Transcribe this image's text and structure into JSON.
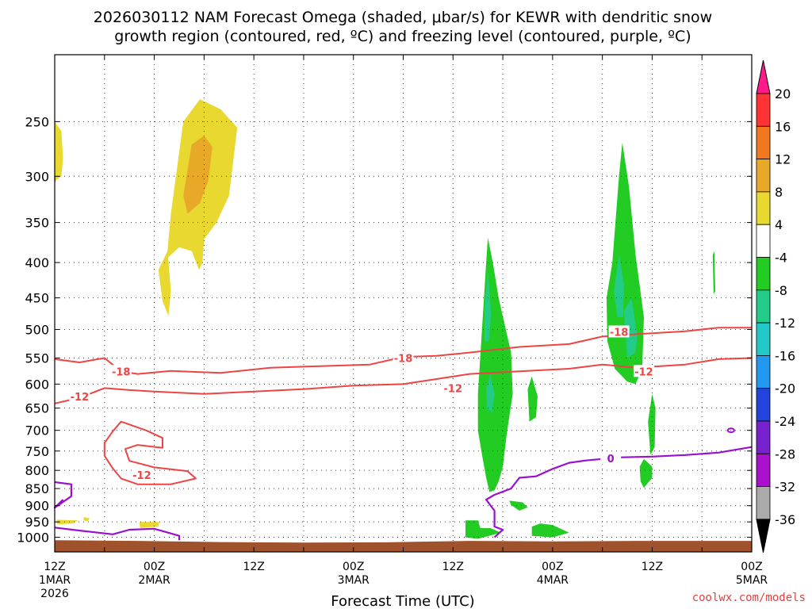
{
  "chart_data": {
    "type": "heatmap",
    "title_line1": "2026030112 NAM Forecast Omega (shaded, μbar/s) for KEWR with dendritic snow",
    "title_line2": "growth region (contoured, red, ºC) and freezing level (contoured, purple, ºC)",
    "xlabel": "Forecast Time (UTC)",
    "y_ticks": [
      250,
      300,
      350,
      400,
      450,
      500,
      550,
      600,
      650,
      700,
      750,
      800,
      850,
      900,
      950,
      1000
    ],
    "ylim": [
      1050,
      200
    ],
    "x_ticks": [
      {
        "hour": 0,
        "l1": "12Z",
        "l2": "1MAR",
        "l3": "2026"
      },
      {
        "hour": 6,
        "l1": "",
        "l2": "",
        "l3": ""
      },
      {
        "hour": 12,
        "l1": "00Z",
        "l2": "2MAR",
        "l3": ""
      },
      {
        "hour": 18,
        "l1": "",
        "l2": "",
        "l3": ""
      },
      {
        "hour": 24,
        "l1": "12Z",
        "l2": "",
        "l3": ""
      },
      {
        "hour": 30,
        "l1": "",
        "l2": "",
        "l3": ""
      },
      {
        "hour": 36,
        "l1": "00Z",
        "l2": "3MAR",
        "l3": ""
      },
      {
        "hour": 42,
        "l1": "",
        "l2": "",
        "l3": ""
      },
      {
        "hour": 48,
        "l1": "12Z",
        "l2": "",
        "l3": ""
      },
      {
        "hour": 54,
        "l1": "",
        "l2": "",
        "l3": ""
      },
      {
        "hour": 60,
        "l1": "00Z",
        "l2": "4MAR",
        "l3": ""
      },
      {
        "hour": 66,
        "l1": "",
        "l2": "",
        "l3": ""
      },
      {
        "hour": 72,
        "l1": "12Z",
        "l2": "",
        "l3": ""
      },
      {
        "hour": 78,
        "l1": "",
        "l2": "",
        "l3": ""
      },
      {
        "hour": 84,
        "l1": "00Z",
        "l2": "5MAR",
        "l3": ""
      }
    ],
    "xlim": [
      0,
      84
    ],
    "colorbar": {
      "labels": [
        20,
        16,
        12,
        8,
        4,
        -4,
        -8,
        -12,
        -16,
        -20,
        -24,
        -28,
        -32,
        -36
      ],
      "colors": [
        "#ff1a8c",
        "#ff3333",
        "#f07820",
        "#e8a828",
        "#e8d830",
        "#ffffff",
        "#22cc22",
        "#22cc88",
        "#22c8c8",
        "#2299ee",
        "#2244dd",
        "#7722cc",
        "#aa11cc",
        "#aaaaaa",
        "#000000"
      ]
    },
    "colors": {
      "dgz": "#ee4444",
      "freezing": "#9911cc",
      "ground": "#a0522d"
    },
    "contour_labels": [
      {
        "text": "-18",
        "hour": 8,
        "p": 575
      },
      {
        "text": "-18",
        "hour": 42,
        "p": 550
      },
      {
        "text": "-18",
        "hour": 68,
        "p": 504
      },
      {
        "text": "-12",
        "hour": 3,
        "p": 625
      },
      {
        "text": "-12",
        "hour": 48,
        "p": 608
      },
      {
        "text": "-12",
        "hour": 71,
        "p": 575
      },
      {
        "text": "-12",
        "hour": 10.5,
        "p": 812
      },
      {
        "text": "0",
        "hour": 67,
        "p": 769
      }
    ],
    "dgz_upper": [
      [
        0,
        552
      ],
      [
        3,
        558
      ],
      [
        6,
        550
      ],
      [
        8,
        575
      ],
      [
        10,
        580
      ],
      [
        14,
        574
      ],
      [
        20,
        578
      ],
      [
        26,
        568
      ],
      [
        32,
        565
      ],
      [
        38,
        562
      ],
      [
        42,
        548
      ],
      [
        46,
        546
      ],
      [
        50,
        540
      ],
      [
        56,
        530
      ],
      [
        62,
        525
      ],
      [
        66,
        512
      ],
      [
        70,
        508
      ],
      [
        76,
        503
      ],
      [
        80,
        497
      ],
      [
        84,
        497
      ]
    ],
    "dgz_lower": [
      [
        0,
        640
      ],
      [
        3,
        628
      ],
      [
        6,
        608
      ],
      [
        9,
        612
      ],
      [
        12,
        615
      ],
      [
        18,
        620
      ],
      [
        24,
        615
      ],
      [
        30,
        610
      ],
      [
        36,
        603
      ],
      [
        42,
        600
      ],
      [
        46,
        590
      ],
      [
        50,
        580
      ],
      [
        56,
        575
      ],
      [
        62,
        570
      ],
      [
        66,
        562
      ],
      [
        70,
        568
      ],
      [
        76,
        562
      ],
      [
        80,
        552
      ],
      [
        84,
        550
      ]
    ],
    "dgz_loop": [
      [
        8,
        680
      ],
      [
        11,
        700
      ],
      [
        13,
        718
      ],
      [
        13,
        742
      ],
      [
        10,
        735
      ],
      [
        8.5,
        745
      ],
      [
        9,
        775
      ],
      [
        12,
        792
      ],
      [
        16,
        802
      ],
      [
        17,
        822
      ],
      [
        14,
        838
      ],
      [
        10,
        838
      ],
      [
        8,
        822
      ],
      [
        7,
        795
      ],
      [
        6,
        762
      ],
      [
        6,
        730
      ],
      [
        7,
        702
      ]
    ],
    "freezing_line": [
      [
        0,
        832
      ],
      [
        2,
        838
      ],
      [
        2,
        872
      ],
      [
        0,
        906
      ],
      [
        1,
        882
      ]
    ],
    "freezing_line2": [
      [
        0,
        968
      ],
      [
        3,
        978
      ],
      [
        7,
        990
      ],
      [
        9,
        975
      ],
      [
        12,
        972
      ],
      [
        15,
        995
      ],
      [
        15,
        1010
      ]
    ],
    "freezing_main": [
      [
        84,
        740
      ],
      [
        80,
        754
      ],
      [
        76,
        760
      ],
      [
        72,
        764
      ],
      [
        68,
        766
      ],
      [
        64,
        774
      ],
      [
        62,
        780
      ],
      [
        60,
        796
      ],
      [
        58,
        816
      ],
      [
        56,
        820
      ],
      [
        55,
        850
      ],
      [
        53,
        868
      ],
      [
        52,
        882
      ],
      [
        53,
        915
      ],
      [
        53,
        965
      ],
      [
        54,
        975
      ],
      [
        53,
        1000
      ]
    ],
    "omega_regions": [
      {
        "name": "pos-left-edge",
        "level": 4,
        "pts": [
          [
            0,
            250
          ],
          [
            0.8,
            258
          ],
          [
            1,
            282
          ],
          [
            0.8,
            300
          ],
          [
            0,
            305
          ]
        ]
      },
      {
        "name": "pos-upper-left",
        "level": 4,
        "pts": [
          [
            0,
            330
          ],
          [
            0.1,
            355
          ],
          [
            0,
            360
          ]
        ]
      },
      {
        "name": "pos-main-12z",
        "level": 4,
        "pts": [
          [
            13.5,
            395
          ],
          [
            14,
            340
          ],
          [
            15.5,
            250
          ],
          [
            17.5,
            232
          ],
          [
            20,
            240
          ],
          [
            22,
            255
          ],
          [
            21,
            320
          ],
          [
            19.5,
            350
          ],
          [
            18,
            370
          ],
          [
            17.8,
            400
          ],
          [
            17.4,
            410
          ],
          [
            16.5,
            385
          ],
          [
            15,
            380
          ]
        ]
      },
      {
        "name": "pos-core-12z",
        "level": 8,
        "pts": [
          [
            15.5,
            320
          ],
          [
            16.5,
            270
          ],
          [
            18,
            262
          ],
          [
            19,
            272
          ],
          [
            18.5,
            305
          ],
          [
            17.5,
            328
          ],
          [
            16,
            340
          ]
        ]
      },
      {
        "name": "pos-small-12z",
        "level": 4,
        "pts": [
          [
            12.5,
            410
          ],
          [
            13.6,
            385
          ],
          [
            14,
            440
          ],
          [
            13.7,
            478
          ],
          [
            13,
            455
          ]
        ]
      },
      {
        "name": "pos-low-left",
        "level": 4,
        "pts": [
          [
            0.2,
            943
          ],
          [
            2.8,
            945
          ],
          [
            2.2,
            955
          ],
          [
            0.3,
            958
          ]
        ]
      },
      {
        "name": "pos-low-left2",
        "level": 4,
        "pts": [
          [
            3.5,
            935
          ],
          [
            4.2,
            938
          ],
          [
            4,
            948
          ],
          [
            3.5,
            945
          ]
        ]
      },
      {
        "name": "pos-low-mid",
        "level": 4,
        "pts": [
          [
            10.2,
            950
          ],
          [
            12.6,
            950
          ],
          [
            12.5,
            965
          ],
          [
            10.3,
            970
          ]
        ]
      },
      {
        "name": "neg-column-4mar",
        "level": -4,
        "pts": [
          [
            51,
            620
          ],
          [
            51.4,
            520
          ],
          [
            52,
            400
          ],
          [
            52.2,
            368
          ],
          [
            52.8,
            400
          ],
          [
            53.5,
            450
          ],
          [
            55,
            540
          ],
          [
            55.2,
            620
          ],
          [
            54.5,
            705
          ],
          [
            54,
            790
          ],
          [
            53.5,
            830
          ],
          [
            53,
            855
          ],
          [
            52.4,
            860
          ],
          [
            52,
            820
          ],
          [
            51.5,
            760
          ],
          [
            51,
            700
          ]
        ]
      },
      {
        "name": "neg-core-4mar",
        "level": -8,
        "pts": [
          [
            51.8,
            470
          ],
          [
            52.2,
            410
          ],
          [
            52.6,
            475
          ],
          [
            52.3,
            520
          ],
          [
            51.8,
            520
          ]
        ]
      },
      {
        "name": "neg-core-4mar-lower",
        "level": -8,
        "pts": [
          [
            52,
            610
          ],
          [
            52.5,
            580
          ],
          [
            53,
            620
          ],
          [
            52.7,
            660
          ],
          [
            52.1,
            650
          ]
        ]
      },
      {
        "name": "neg-column-5mar",
        "level": -4,
        "pts": [
          [
            66.5,
            450
          ],
          [
            67.2,
            400
          ],
          [
            68,
            300
          ],
          [
            68.4,
            268
          ],
          [
            69.2,
            310
          ],
          [
            70,
            390
          ],
          [
            71,
            480
          ],
          [
            70.8,
            570
          ],
          [
            70,
            600
          ],
          [
            69,
            595
          ],
          [
            67.5,
            570
          ],
          [
            66.6,
            520
          ]
        ]
      },
      {
        "name": "neg-core-5mar",
        "level": -8,
        "pts": [
          [
            67.4,
            440
          ],
          [
            68,
            390
          ],
          [
            68.6,
            430
          ],
          [
            68.5,
            480
          ],
          [
            67.8,
            480
          ]
        ]
      },
      {
        "name": "neg-core-5mar-lower",
        "level": -8,
        "pts": [
          [
            68.6,
            470
          ],
          [
            69.5,
            450
          ],
          [
            70.2,
            510
          ],
          [
            70,
            540
          ],
          [
            69,
            550
          ]
        ]
      },
      {
        "name": "neg-small-4mar-a",
        "level": -4,
        "pts": [
          [
            57,
            610
          ],
          [
            57.5,
            585
          ],
          [
            58.2,
            625
          ],
          [
            58,
            670
          ],
          [
            57.2,
            680
          ]
        ]
      },
      {
        "name": "neg-small-4mar-b",
        "level": -4,
        "pts": [
          [
            54.8,
            885
          ],
          [
            56.4,
            890
          ],
          [
            57,
            905
          ],
          [
            56,
            915
          ],
          [
            55,
            898
          ]
        ]
      },
      {
        "name": "neg-low-4mar-a",
        "level": -4,
        "pts": [
          [
            49.5,
            945
          ],
          [
            51,
            945
          ],
          [
            51.3,
            970
          ],
          [
            52.5,
            970
          ],
          [
            53.8,
            985
          ],
          [
            51,
            1005
          ],
          [
            49.5,
            1000
          ]
        ]
      },
      {
        "name": "neg-low-4mar-b",
        "level": -4,
        "pts": [
          [
            57.5,
            965
          ],
          [
            58.5,
            955
          ],
          [
            60,
            960
          ],
          [
            62,
            985
          ],
          [
            60,
            1000
          ],
          [
            57.5,
            995
          ]
        ]
      },
      {
        "name": "neg-lower-5mar-a",
        "level": -4,
        "pts": [
          [
            71.5,
            680
          ],
          [
            72,
            620
          ],
          [
            72.4,
            650
          ],
          [
            72.3,
            740
          ],
          [
            71.8,
            760
          ]
        ]
      },
      {
        "name": "neg-lower-5mar-b",
        "level": -4,
        "pts": [
          [
            70.5,
            790
          ],
          [
            71,
            770
          ],
          [
            72,
            790
          ],
          [
            72,
            820
          ],
          [
            71,
            848
          ],
          [
            70.6,
            830
          ]
        ]
      },
      {
        "name": "neg-right-small",
        "level": -4,
        "pts": [
          [
            79.3,
            390
          ],
          [
            79.5,
            385
          ],
          [
            79.6,
            440
          ],
          [
            79.4,
            445
          ]
        ]
      },
      {
        "name": "neg-left-upper",
        "level": -4,
        "pts": [
          [
            0,
            300
          ],
          [
            0.1,
            300
          ],
          [
            0.1,
            306
          ],
          [
            0,
            306
          ]
        ]
      }
    ],
    "credit": "coolwx.com/models"
  }
}
